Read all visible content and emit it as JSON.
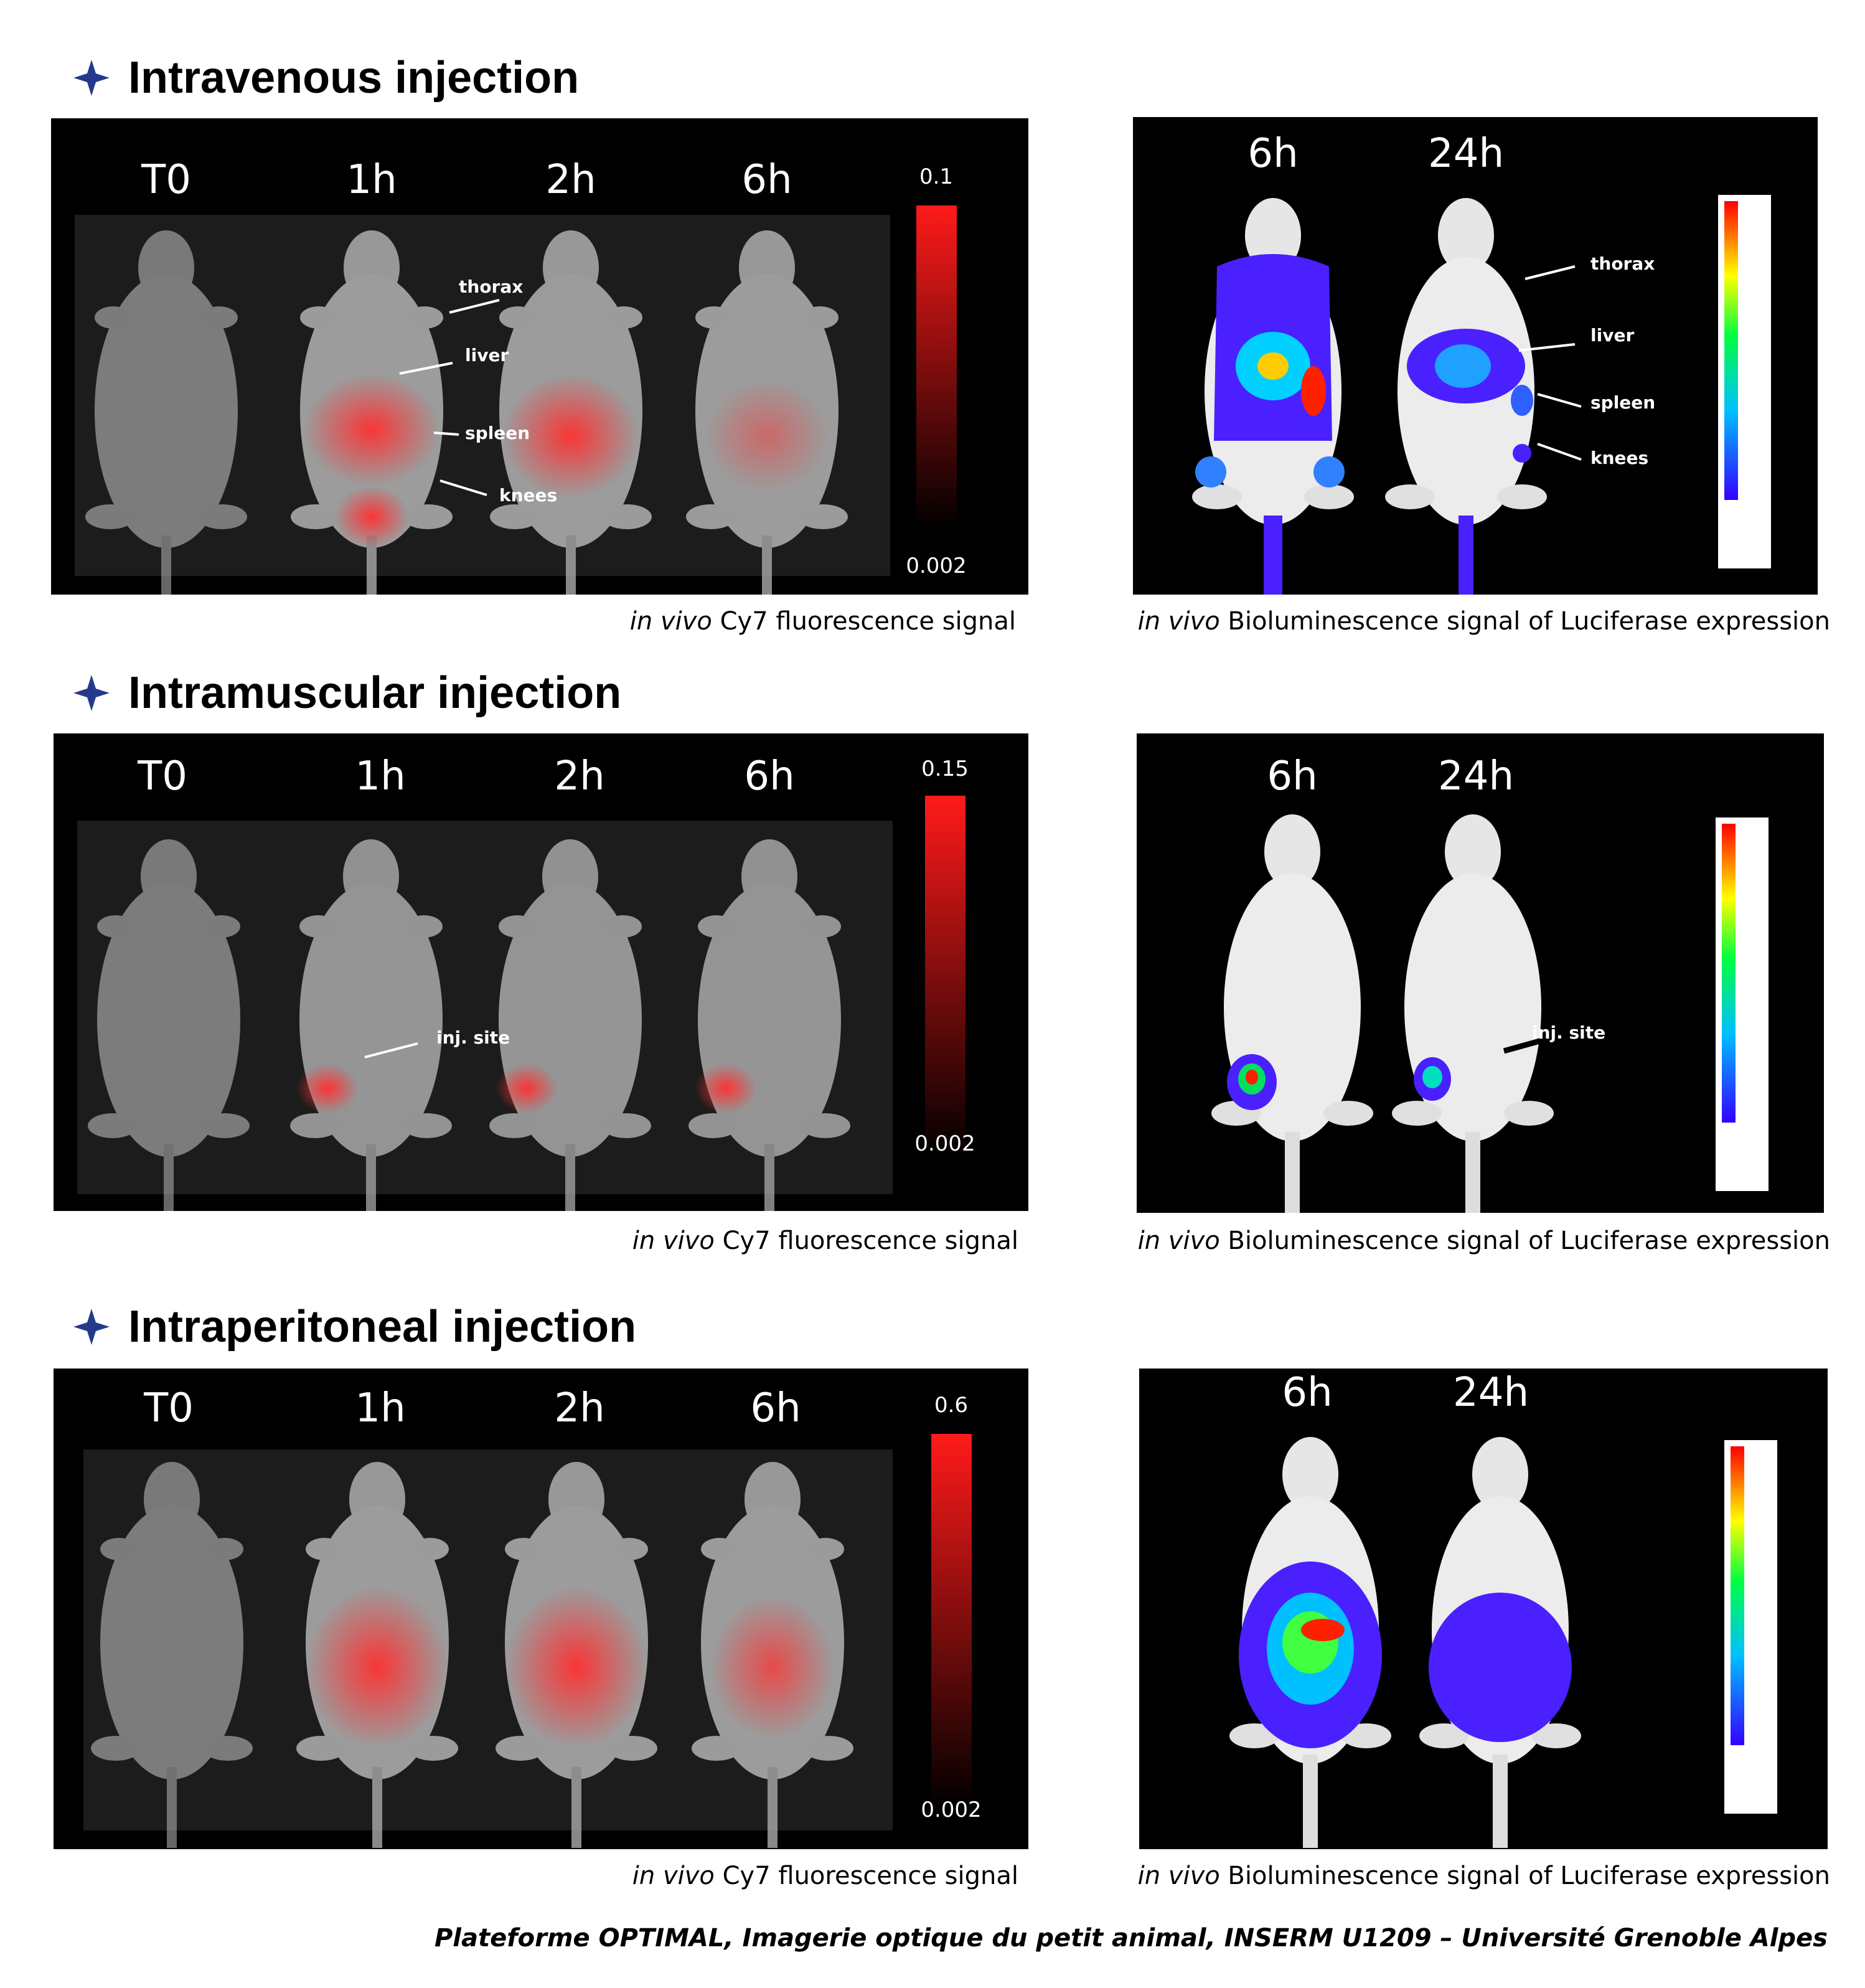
{
  "colors": {
    "heading_star": "#233a8c",
    "fluor": "#ff2a2a",
    "panel_bg": "#000000"
  },
  "sections": [
    {
      "title": "Intravenous injection",
      "fluor": {
        "timepoints": [
          "T0",
          "1h",
          "2h",
          "6h"
        ],
        "scale_max": "0.1",
        "scale_min": "0.002",
        "labels": [
          "thorax",
          "liver",
          "spleen",
          "knees"
        ],
        "caption_italic": "in vivo",
        "caption_rest": " Cy7 fluorescence signal"
      },
      "biolum": {
        "timepoints": [
          "6h",
          "24h"
        ],
        "labels": [
          "thorax",
          "liver",
          "spleen",
          "knees"
        ],
        "caption_italic": "in vivo",
        "caption_rest": " Bioluminescence signal of Luciferase expression"
      }
    },
    {
      "title": "Intramuscular injection",
      "fluor": {
        "timepoints": [
          "T0",
          "1h",
          "2h",
          "6h"
        ],
        "scale_max": "0.15",
        "scale_min": "0.002",
        "labels": [
          "inj. site"
        ],
        "caption_italic": "in vivo",
        "caption_rest": " Cy7 fluorescence signal"
      },
      "biolum": {
        "timepoints": [
          "6h",
          "24h"
        ],
        "labels": [
          "inj. site"
        ],
        "caption_italic": "in vivo",
        "caption_rest": " Bioluminescence signal of Luciferase expression"
      }
    },
    {
      "title": "Intraperitoneal injection",
      "fluor": {
        "timepoints": [
          "T0",
          "1h",
          "2h",
          "6h"
        ],
        "scale_max": "0.6",
        "scale_min": "0.002",
        "labels": [],
        "caption_italic": "in vivo",
        "caption_rest": " Cy7 fluorescence signal"
      },
      "biolum": {
        "timepoints": [
          "6h",
          "24h"
        ],
        "labels": [],
        "caption_italic": "in vivo",
        "caption_rest": " Bioluminescence signal of Luciferase expression"
      }
    }
  ],
  "footer": "Plateforme OPTIMAL, Imagerie optique du petit animal, INSERM U1209 – Université Grenoble Alpes"
}
